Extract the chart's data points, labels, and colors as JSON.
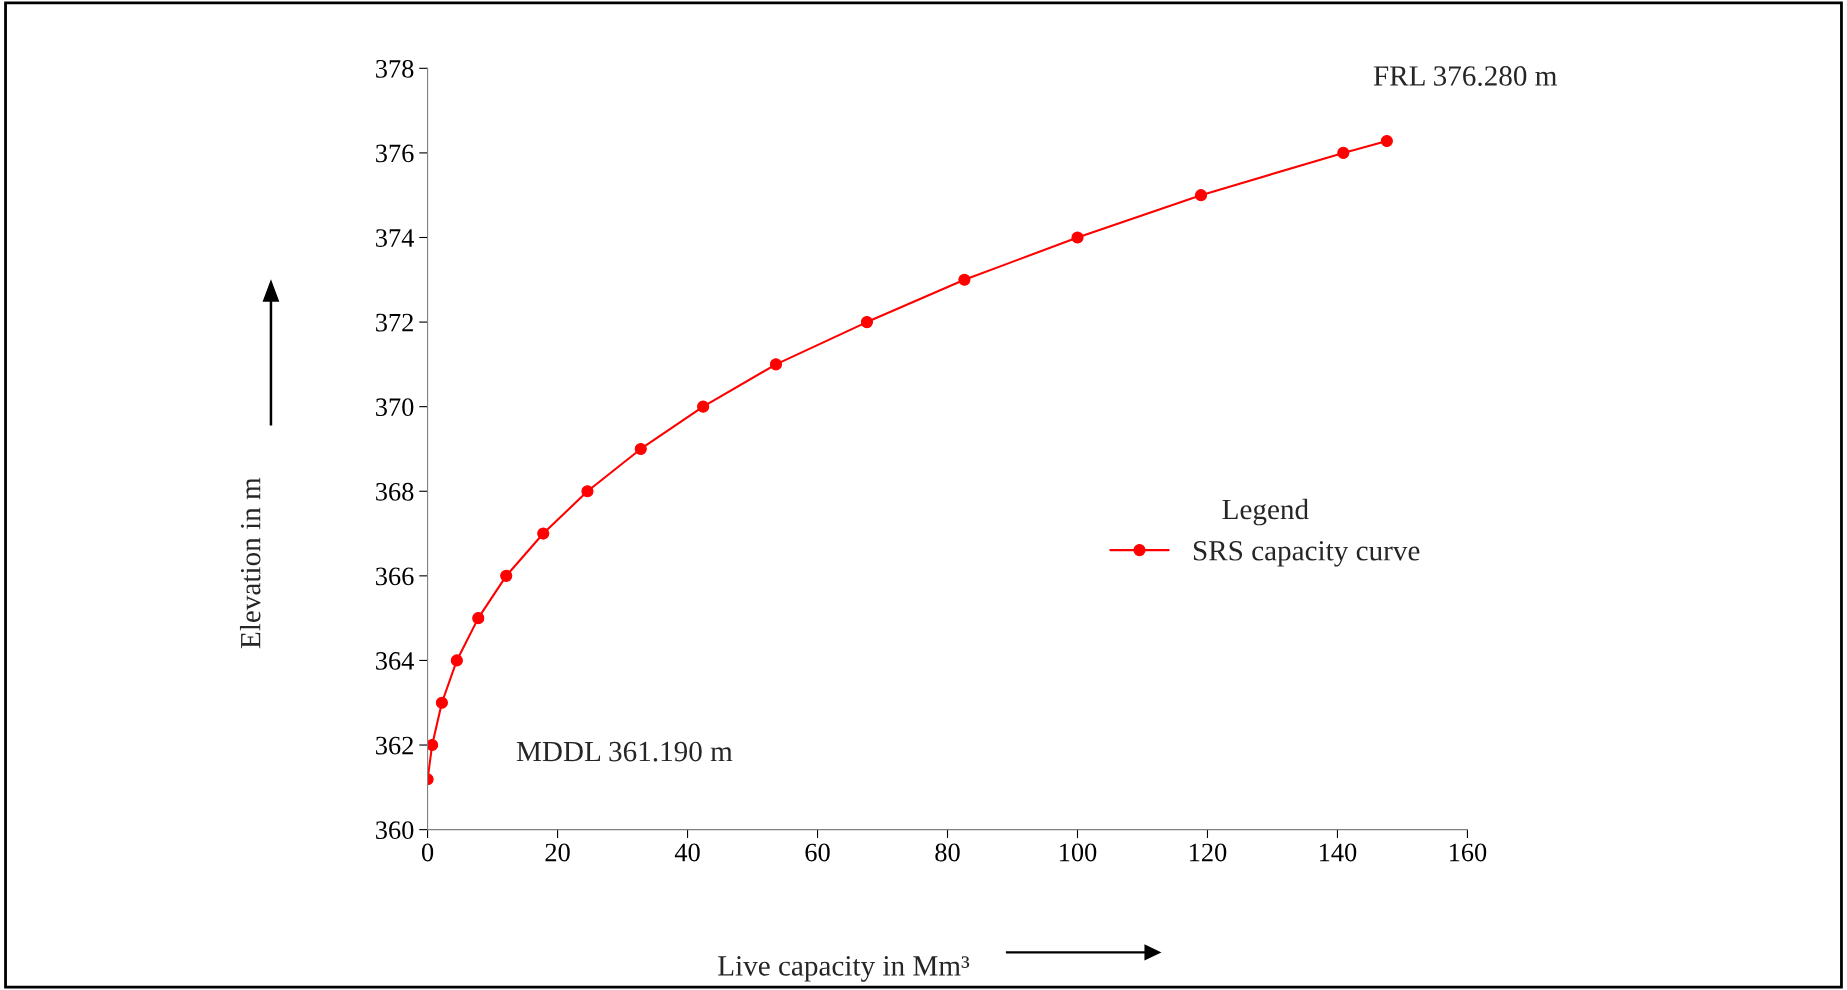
{
  "chart_data": {
    "type": "line",
    "xlabel": "Live capacity in Mm³",
    "ylabel": "Elevation in m",
    "x": [
      0,
      0.7,
      2.2,
      4.5,
      7.8,
      12.1,
      17.8,
      24.6,
      32.8,
      42.4,
      53.6,
      67.6,
      82.6,
      100.0,
      119.0,
      140.9,
      147.6
    ],
    "series": [
      {
        "name": "SRS capacity curve",
        "color": "#ff0000",
        "values": [
          361.19,
          362,
          363,
          364,
          365,
          366,
          367,
          368,
          369,
          370,
          371,
          372,
          373,
          374,
          375,
          376,
          376.28
        ]
      }
    ],
    "xlim": [
      0,
      160
    ],
    "xticks": [
      0,
      20,
      40,
      60,
      80,
      100,
      120,
      140,
      160
    ],
    "ylim": [
      360,
      378
    ],
    "yticks": [
      360,
      362,
      364,
      366,
      368,
      370,
      372,
      374,
      376,
      378
    ],
    "legend": "center right",
    "legend_title": "Legend",
    "marker": "circle",
    "line_style": "solid",
    "grid": false,
    "annotations": [
      {
        "text": "FRL 376.280 m",
        "x": 147.6,
        "y": 376.28
      },
      "MDDL 361.190 m"
    ]
  }
}
